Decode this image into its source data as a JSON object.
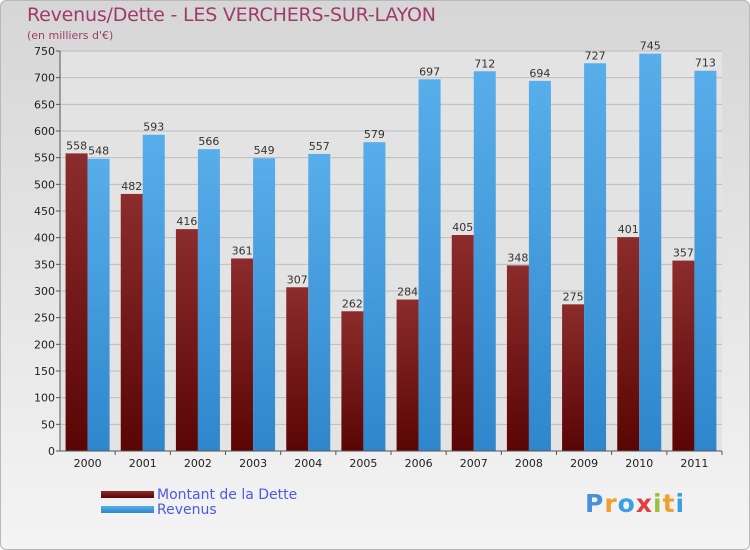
{
  "chart_data": {
    "type": "bar",
    "title": "Revenus/Dette - LES VERCHERS-SUR-LAYON",
    "subtitle": "(en milliers d'€)",
    "categories": [
      "2000",
      "2001",
      "2002",
      "2003",
      "2004",
      "2005",
      "2006",
      "2007",
      "2008",
      "2009",
      "2010",
      "2011"
    ],
    "series": [
      {
        "name": "Montant de la Dette",
        "color": "#7a1414",
        "values": [
          558,
          482,
          416,
          361,
          307,
          262,
          284,
          405,
          348,
          275,
          401,
          357
        ]
      },
      {
        "name": "Revenus",
        "color": "#4aa3e6",
        "values": [
          548,
          593,
          566,
          549,
          557,
          579,
          697,
          712,
          694,
          727,
          745,
          713
        ]
      }
    ],
    "ylim": [
      0,
      750
    ],
    "yticks": [
      0,
      50,
      100,
      150,
      200,
      250,
      300,
      350,
      400,
      450,
      500,
      550,
      600,
      650,
      700,
      750
    ],
    "grid": true,
    "legend_position": "bottom-left"
  },
  "logo": {
    "letters": [
      {
        "ch": "P",
        "color": "#4a90d9"
      },
      {
        "ch": "r",
        "color": "#f0a030"
      },
      {
        "ch": "o",
        "color": "#3aa0e0"
      },
      {
        "ch": "x",
        "color": "#e04040"
      },
      {
        "ch": "i",
        "color": "#9ac040"
      },
      {
        "ch": "t",
        "color": "#f0a030"
      },
      {
        "ch": "i",
        "color": "#3aa0e0"
      }
    ]
  }
}
